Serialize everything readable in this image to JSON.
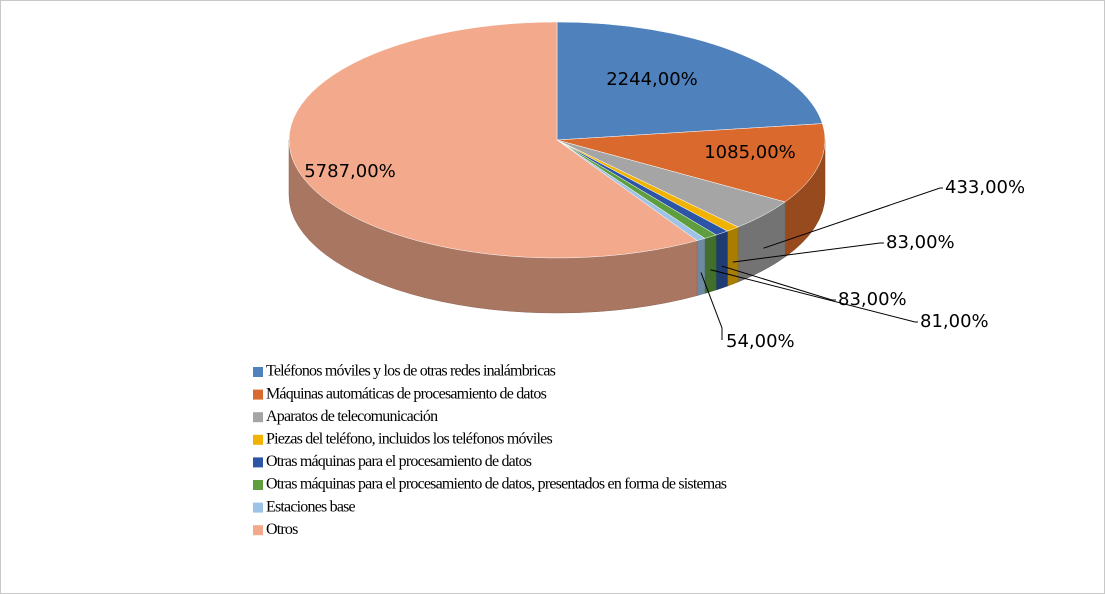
{
  "chart_data": {
    "type": "pie3d",
    "categories": [
      "Teléfonos móviles y los de otras redes inalámbricas",
      "Máquinas automáticas de procesamiento de datos",
      "Aparatos de telecomunicación",
      "Piezas del teléfono, incluidos los teléfonos móviles",
      "Otras máquinas para el procesamiento de datos",
      "Otras máquinas para el procesamiento de datos, presentados en forma de sistemas",
      "Estaciones base",
      "Otros"
    ],
    "values": [
      2244,
      1085,
      433,
      83,
      83,
      81,
      54,
      5787
    ],
    "value_labels": [
      "2244,00%",
      "1085,00%",
      "433,00%",
      "83,00%",
      "83,00%",
      "81,00%",
      "54,00%",
      "5787,00%"
    ],
    "colors": [
      "#4f81bd",
      "#d9692c",
      "#a5a5a5",
      "#f2b200",
      "#2d55a5",
      "#5e9e3e",
      "#9dc3e6",
      "#f2a98c"
    ],
    "legend": "bottom"
  }
}
